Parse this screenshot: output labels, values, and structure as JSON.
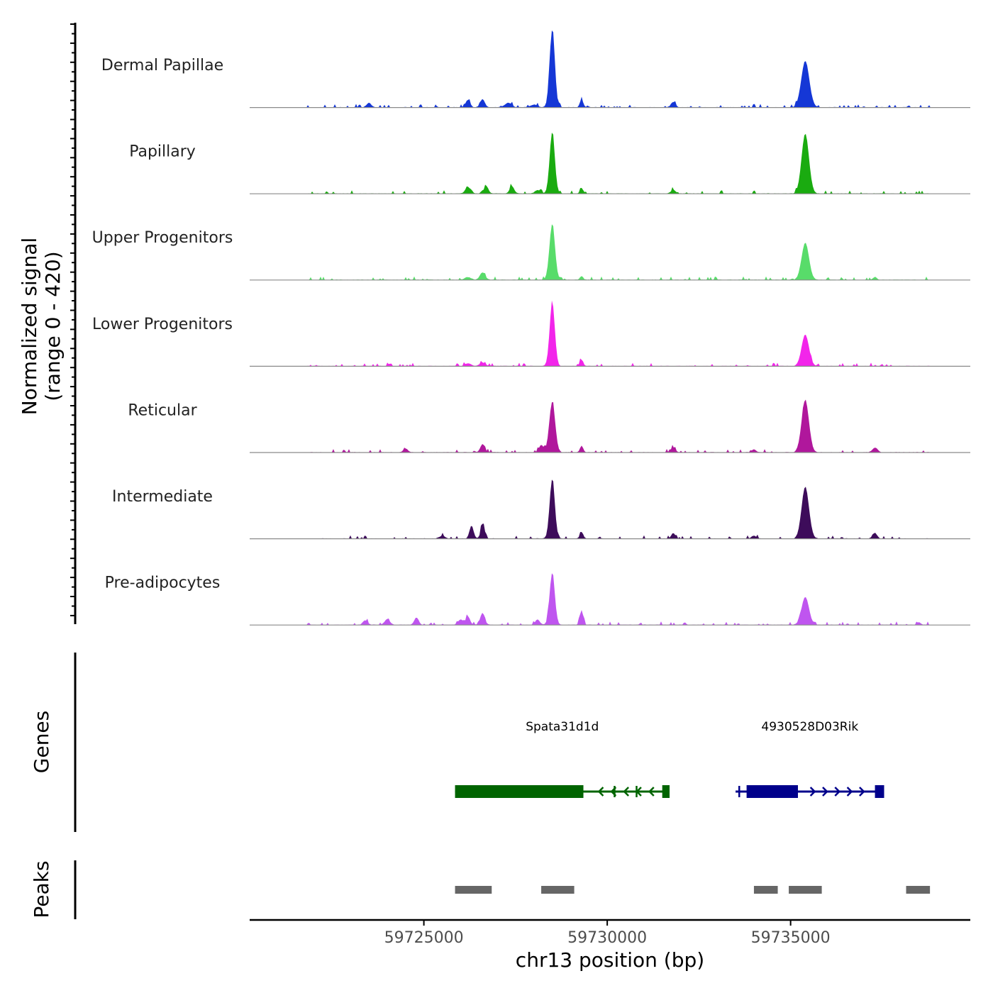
{
  "chart_data": {
    "type": "area",
    "title": "",
    "ylabel_lines": [
      "Normalized signal",
      "(range 0 - 420)"
    ],
    "ylim": [
      0,
      420
    ],
    "xlabel": "chr13 position (bp)",
    "xlim": [
      59720250,
      59739900
    ],
    "x_ticks": [
      59725000,
      59730000,
      59735000
    ],
    "x_tick_labels": [
      "59725000",
      "59730000",
      "59735000"
    ],
    "tracks": [
      {
        "name": "Dermal Papillae",
        "color": "#1537d6",
        "peaks": [
          [
            59728500,
            420,
            70
          ],
          [
            59729300,
            40,
            45
          ],
          [
            59735400,
            250,
            110
          ],
          [
            59726200,
            40,
            60
          ],
          [
            59726600,
            45,
            60
          ],
          [
            59727300,
            25,
            90
          ],
          [
            59723500,
            25,
            60
          ],
          [
            59731800,
            30,
            60
          ],
          [
            59728000,
            15,
            80
          ]
        ]
      },
      {
        "name": "Papillary",
        "color": "#1aab10",
        "peaks": [
          [
            59728500,
            330,
            70
          ],
          [
            59729300,
            30,
            45
          ],
          [
            59735400,
            325,
            100
          ],
          [
            59726200,
            35,
            70
          ],
          [
            59726700,
            40,
            60
          ],
          [
            59727400,
            40,
            60
          ],
          [
            59731800,
            20,
            60
          ],
          [
            59728100,
            20,
            70
          ]
        ]
      },
      {
        "name": "Upper Progenitors",
        "color": "#58dc6a",
        "peaks": [
          [
            59728500,
            300,
            75
          ],
          [
            59729300,
            20,
            45
          ],
          [
            59735400,
            200,
            100
          ],
          [
            59726600,
            40,
            70
          ],
          [
            59726200,
            15,
            80
          ],
          [
            59737300,
            15,
            50
          ]
        ]
      },
      {
        "name": "Lower Progenitors",
        "color": "#f225ea",
        "peaks": [
          [
            59728500,
            340,
            70
          ],
          [
            59729300,
            35,
            45
          ],
          [
            59735400,
            170,
            100
          ],
          [
            59726600,
            20,
            70
          ],
          [
            59726200,
            15,
            80
          ]
        ]
      },
      {
        "name": "Reticular",
        "color": "#b0179c",
        "peaks": [
          [
            59728500,
            270,
            80
          ],
          [
            59729300,
            35,
            45
          ],
          [
            59735400,
            280,
            100
          ],
          [
            59726600,
            45,
            60
          ],
          [
            59724500,
            20,
            60
          ],
          [
            59731800,
            25,
            60
          ],
          [
            59737300,
            25,
            70
          ],
          [
            59734000,
            15,
            60
          ],
          [
            59728200,
            40,
            60
          ]
        ]
      },
      {
        "name": "Intermediate",
        "color": "#3d0c5a",
        "peaks": [
          [
            59728500,
            320,
            70
          ],
          [
            59729300,
            35,
            45
          ],
          [
            59735400,
            280,
            100
          ],
          [
            59726300,
            70,
            55
          ],
          [
            59726600,
            80,
            50
          ],
          [
            59731800,
            30,
            55
          ],
          [
            59737300,
            30,
            60
          ],
          [
            59734000,
            15,
            60
          ],
          [
            59725500,
            15,
            80
          ]
        ]
      },
      {
        "name": "Pre-adipocytes",
        "color": "#bf55ef",
        "peaks": [
          [
            59728500,
            280,
            70
          ],
          [
            59729300,
            80,
            45
          ],
          [
            59735400,
            150,
            100
          ],
          [
            59726200,
            45,
            60
          ],
          [
            59726600,
            65,
            60
          ],
          [
            59726000,
            30,
            60
          ],
          [
            59724000,
            30,
            70
          ],
          [
            59724800,
            40,
            60
          ],
          [
            59723400,
            25,
            60
          ],
          [
            59728100,
            30,
            60
          ],
          [
            59738500,
            15,
            50
          ]
        ]
      }
    ],
    "genes": [
      {
        "name": "Spata31d1d",
        "strand": "-",
        "color": "#006400",
        "start": 59725850,
        "end": 59731700,
        "thick": [
          [
            59725850,
            59729350
          ]
        ],
        "exon_end": [
          59731500,
          59731700
        ],
        "ticks": [
          59730200,
          59730800
        ]
      },
      {
        "name": "4930528D03Rik",
        "strand": "+",
        "color": "#00008b",
        "start": 59733500,
        "end": 59737550,
        "thick": [
          [
            59733800,
            59735200
          ]
        ],
        "exon_end": [
          59737300,
          59737550
        ],
        "ticks": [
          59733600
        ]
      }
    ],
    "peaks_track": {
      "label": "Peaks",
      "color": "#666666",
      "regions": [
        [
          59725850,
          59726850
        ],
        [
          59728200,
          59729100
        ],
        [
          59734000,
          59734650
        ],
        [
          59734950,
          59735850
        ],
        [
          59738150,
          59738800
        ]
      ]
    },
    "genes_track_label": "Genes"
  }
}
